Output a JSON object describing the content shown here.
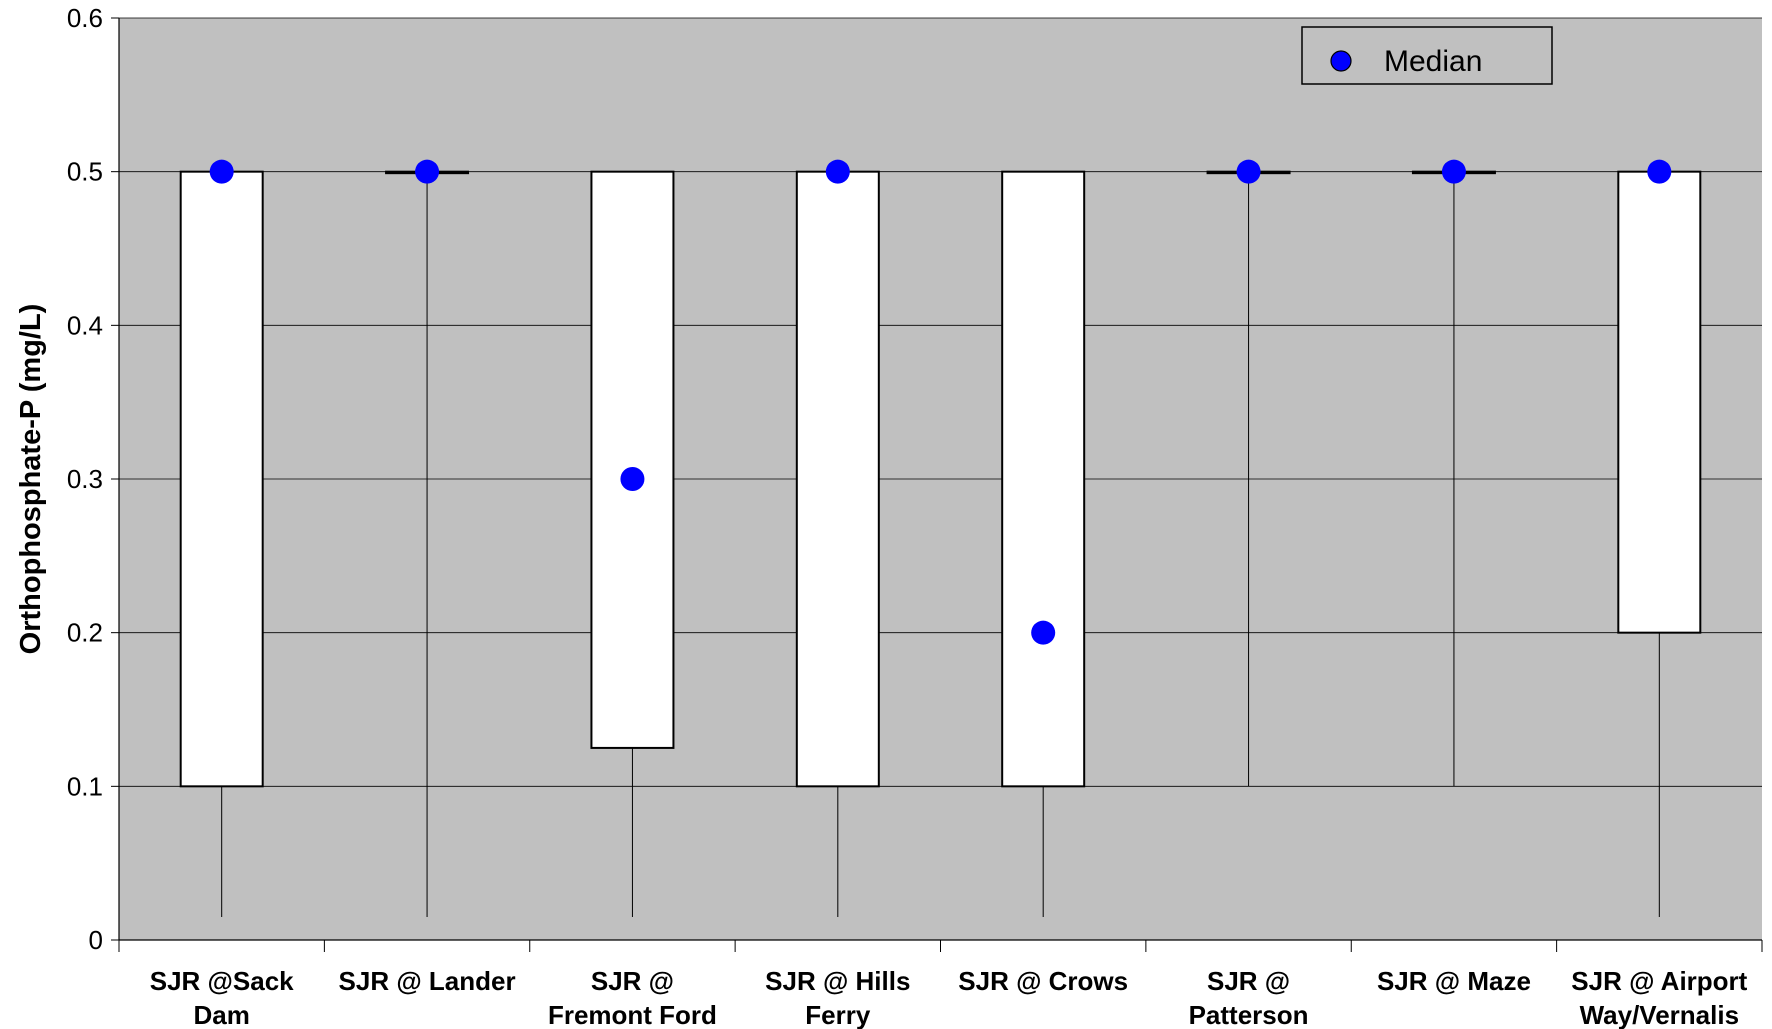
{
  "chart_data": {
    "type": "box",
    "title": "",
    "xlabel": "",
    "ylabel": "Orthophosphate-P (mg/L)",
    "ylim": [
      0,
      0.6
    ],
    "yticks": [
      0,
      0.1,
      0.2,
      0.3,
      0.4,
      0.5,
      0.6
    ],
    "ytick_labels": [
      "0",
      "0.1",
      "0.2",
      "0.3",
      "0.4",
      "0.5",
      "0.6"
    ],
    "grid": true,
    "legend": {
      "position": "top-right",
      "entries": [
        "Median"
      ]
    },
    "categories": [
      [
        "SJR @Sack",
        "Dam"
      ],
      [
        "SJR @ Lander"
      ],
      [
        "SJR @",
        "Fremont Ford"
      ],
      [
        "SJR @ Hills",
        "Ferry"
      ],
      [
        "SJR @ Crows"
      ],
      [
        "SJR @",
        "Patterson"
      ],
      [
        "SJR @ Maze"
      ],
      [
        "SJR @ Airport",
        "Way/Vernalis"
      ]
    ],
    "boxes": [
      {
        "whisker_low": 0.015,
        "q1": 0.1,
        "q3": 0.5,
        "whisker_high": 0.5,
        "median": 0.5
      },
      {
        "whisker_low": 0.015,
        "q1": 0.5,
        "q3": 0.5,
        "whisker_high": 0.5,
        "median": 0.5
      },
      {
        "whisker_low": 0.015,
        "q1": 0.125,
        "q3": 0.5,
        "whisker_high": 0.5,
        "median": 0.3
      },
      {
        "whisker_low": 0.015,
        "q1": 0.1,
        "q3": 0.5,
        "whisker_high": 0.5,
        "median": 0.5
      },
      {
        "whisker_low": 0.015,
        "q1": 0.1,
        "q3": 0.5,
        "whisker_high": 0.5,
        "median": 0.2
      },
      {
        "whisker_low": 0.1,
        "q1": 0.5,
        "q3": 0.5,
        "whisker_high": 0.5,
        "median": 0.5
      },
      {
        "whisker_low": 0.1,
        "q1": 0.5,
        "q3": 0.5,
        "whisker_high": 0.5,
        "median": 0.5
      },
      {
        "whisker_low": 0.015,
        "q1": 0.2,
        "q3": 0.5,
        "whisker_high": 0.5,
        "median": 0.5
      }
    ],
    "colors": {
      "plot_bg": "#c0c0c0",
      "box_fill": "#ffffff",
      "median_marker": "#0000ff"
    }
  }
}
